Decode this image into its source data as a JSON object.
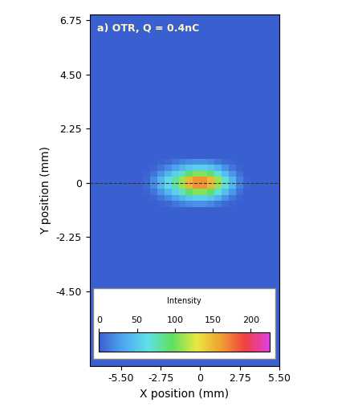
{
  "chart_data": {
    "type": "heatmap",
    "title": "a) OTR, Q = 0.4nC",
    "x_label": "X position (mm)",
    "y_label": "Y position (mm)",
    "xlim": [
      -7.7,
      5.5
    ],
    "ylim": [
      -7.6,
      7.0
    ],
    "xticks": [
      {
        "value": -5.5,
        "label": "-5.50"
      },
      -2.75,
      0,
      2.75,
      {
        "value": 5.5,
        "label": "5.50"
      }
    ],
    "yticks": [
      6.75,
      {
        "value": 4.5,
        "label": "4.50"
      },
      2.25,
      0,
      -2.25,
      {
        "value": -4.5,
        "label": "-4.50"
      }
    ],
    "x_edges": [
      -7.7,
      -4,
      -3.5,
      -3,
      -2.5,
      -2,
      -1.5,
      -1,
      -0.5,
      0,
      0.5,
      1,
      1.5,
      2,
      2.5,
      3,
      3.5,
      5.5
    ],
    "y_edges": [
      -7.6,
      -1,
      -0.75,
      -0.5,
      -0.25,
      0,
      0.25,
      0.5,
      0.75,
      1,
      7.0
    ],
    "cells": [
      [
        0,
        0,
        0,
        0,
        0,
        0,
        0,
        0,
        0,
        0,
        0,
        0,
        0,
        0,
        0,
        0,
        0
      ],
      [
        0,
        0,
        0,
        2,
        5,
        10,
        15,
        20,
        22,
        22,
        18,
        12,
        6,
        2,
        0,
        0,
        0
      ],
      [
        0,
        0,
        3,
        10,
        20,
        30,
        40,
        50,
        55,
        55,
        50,
        38,
        22,
        10,
        2,
        0,
        0
      ],
      [
        0,
        2,
        10,
        25,
        40,
        55,
        75,
        95,
        105,
        105,
        95,
        70,
        45,
        25,
        8,
        0,
        0
      ],
      [
        0,
        5,
        20,
        40,
        60,
        80,
        110,
        150,
        165,
        165,
        150,
        110,
        70,
        40,
        15,
        3,
        0
      ],
      [
        0,
        5,
        20,
        40,
        60,
        80,
        110,
        150,
        165,
        165,
        150,
        110,
        70,
        40,
        15,
        3,
        0
      ],
      [
        0,
        2,
        10,
        25,
        40,
        55,
        75,
        95,
        105,
        105,
        95,
        70,
        45,
        25,
        8,
        0,
        0
      ],
      [
        0,
        0,
        3,
        10,
        20,
        30,
        40,
        50,
        55,
        55,
        50,
        38,
        22,
        10,
        2,
        0,
        0
      ],
      [
        0,
        0,
        0,
        2,
        5,
        10,
        15,
        20,
        22,
        22,
        18,
        12,
        6,
        2,
        0,
        0,
        0
      ],
      [
        0,
        0,
        0,
        0,
        0,
        0,
        0,
        0,
        0,
        0,
        0,
        0,
        0,
        0,
        0,
        0,
        0
      ]
    ],
    "hline": 0,
    "colorbar_label": "Intensity",
    "colorbar_range": [
      0,
      225
    ],
    "colorbar_ticks": [
      0,
      50,
      100,
      150,
      200
    ]
  }
}
